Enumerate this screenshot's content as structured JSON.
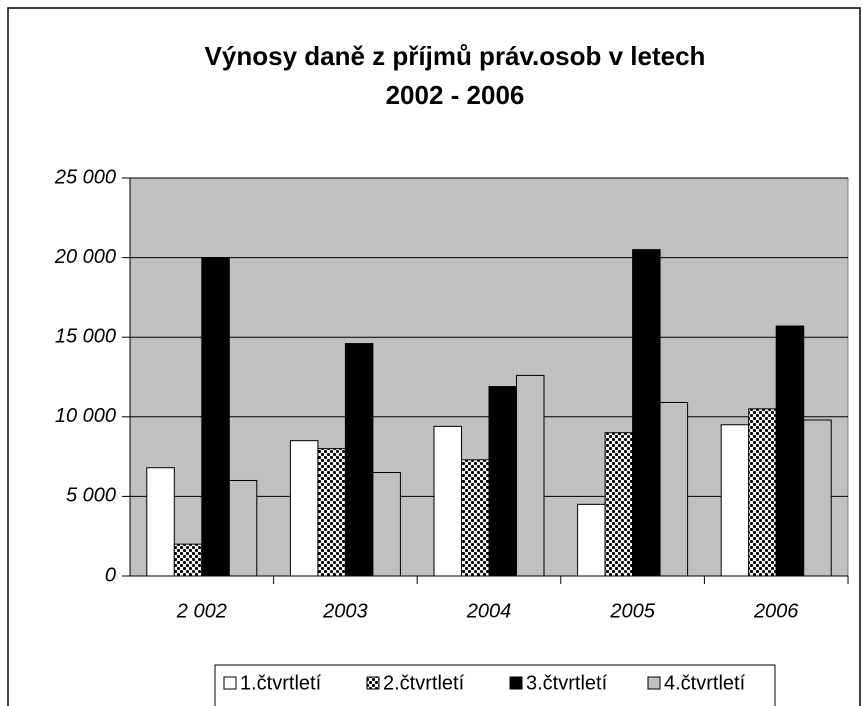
{
  "chart_data": {
    "type": "bar",
    "title": [
      "Výnosy daně z příjmů práv.osob v letech",
      "2002 - 2006"
    ],
    "categories": [
      "2 002",
      "2003",
      "2004",
      "2005",
      "2006"
    ],
    "series": [
      {
        "name": "1.čtvrtletí",
        "color": "#ffffff",
        "values": [
          6800,
          8500,
          9400,
          4500,
          9500
        ]
      },
      {
        "name": "2.čtvrtletí",
        "color": "#000000",
        "pattern": "checker",
        "values": [
          2000,
          8000,
          7300,
          9000,
          10500
        ]
      },
      {
        "name": "3.čtvrtletí",
        "color": "#000000",
        "values": [
          20000,
          14600,
          11900,
          20500,
          15700
        ]
      },
      {
        "name": "4.čtvrtletí",
        "color": "#c0c0c0",
        "values": [
          6000,
          6500,
          12600,
          10900,
          9800
        ]
      }
    ],
    "ylim": [
      0,
      25000
    ],
    "yticks": [
      0,
      {
        "value": 5000,
        "label": "5 000"
      },
      {
        "value": 10000,
        "label": "10 000"
      },
      {
        "value": 15000,
        "label": "15 000"
      },
      {
        "value": 20000,
        "label": "20 000"
      },
      {
        "value": 25000,
        "label": "25 000"
      }
    ],
    "grid": true,
    "plot_background": "#c0c0c0",
    "legend": "bottom"
  }
}
